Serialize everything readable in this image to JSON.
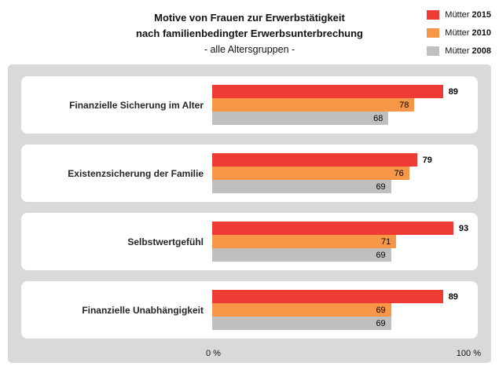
{
  "title": {
    "line1": "Motive von Frauen zur Erwerbstätigkeit",
    "line2": "nach familienbedingter Erwerbsunterbrechung",
    "line3": "- alle Altersgruppen -"
  },
  "legend": [
    {
      "name": "Mütter",
      "year": "2015",
      "color": "#ee3b33"
    },
    {
      "name": "Mütter",
      "year": "2010",
      "color": "#f79646"
    },
    {
      "name": "Mütter",
      "year": "2008",
      "color": "#bfbfbf"
    }
  ],
  "axis": {
    "min_label": "0 %",
    "max_label": "100 %"
  },
  "colors": {
    "plot_background": "#d9d9d9",
    "panel_background": "#ffffff",
    "series_2015": "#ee3b33",
    "series_2010": "#f79646",
    "series_2008": "#bfbfbf"
  },
  "chart_data": {
    "type": "bar",
    "orientation": "horizontal",
    "title": "Motive von Frauen zur Erwerbstätigkeit nach familienbedingter Erwerbsunterbrechung - alle Altersgruppen -",
    "categories": [
      "Finanzielle Sicherung im Alter",
      "Existenzsicherung der Familie",
      "Selbstwertgefühl",
      "Finanzielle Unabhängigkeit"
    ],
    "series": [
      {
        "name": "Mütter 2015",
        "color": "#ee3b33",
        "label_position": "outside",
        "values": [
          89,
          79,
          93,
          89
        ]
      },
      {
        "name": "Mütter 2010",
        "color": "#f79646",
        "label_position": "inside",
        "values": [
          78,
          76,
          71,
          69
        ]
      },
      {
        "name": "Mütter 2008",
        "color": "#bfbfbf",
        "label_position": "inside",
        "values": [
          68,
          69,
          69,
          69
        ]
      }
    ],
    "xlim": [
      0,
      100
    ],
    "xlabel": "",
    "ylabel": "",
    "grid": false,
    "value_labels": true,
    "legend_position": "top-right"
  }
}
